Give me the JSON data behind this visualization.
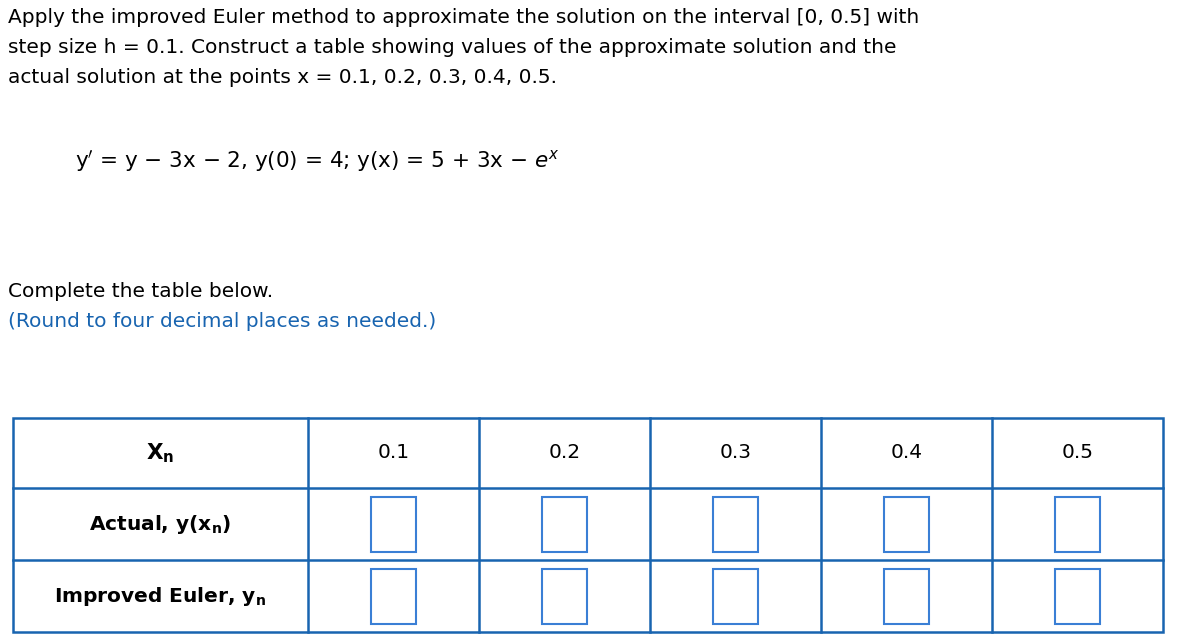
{
  "title_text_line1": "Apply the improved Euler method to approximate the solution on the interval [0, 0.5] with",
  "title_text_line2": "step size h = 0.1. Construct a table showing values of the approximate solution and the",
  "title_text_line3": "actual solution at the points x = 0.1, 0.2, 0.3, 0.4, 0.5.",
  "complete_text": "Complete the table below.",
  "round_text": "(Round to four decimal places as needed.)",
  "col_headers": [
    "0.1",
    "0.2",
    "0.3",
    "0.4",
    "0.5"
  ],
  "background_color": "#ffffff",
  "text_color": "#000000",
  "blue_color": "#1864b0",
  "table_border_color": "#1864b0",
  "input_box_color": "#3a7fd5",
  "title_fontsize": 14.5,
  "equation_fontsize": 15.5,
  "label_fontsize": 14.5,
  "table_text_fontsize": 14.5
}
